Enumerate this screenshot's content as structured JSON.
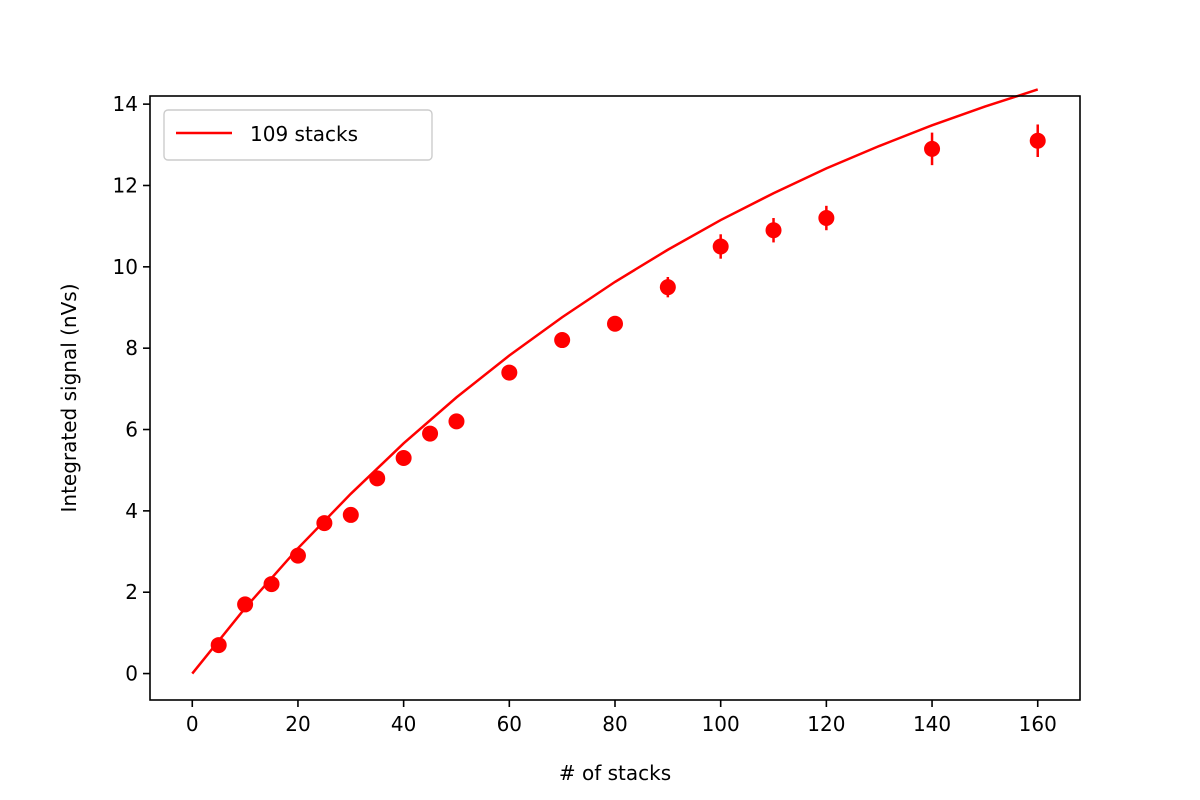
{
  "chart_data": {
    "type": "scatter",
    "title": "",
    "xlabel": "# of stacks",
    "ylabel": "Integrated signal (nVs)",
    "xlim": [
      -8,
      168
    ],
    "ylim": [
      -0.65,
      14.2
    ],
    "xticks": [
      0,
      20,
      40,
      60,
      80,
      100,
      120,
      140,
      160
    ],
    "yticks": [
      0,
      2,
      4,
      6,
      8,
      10,
      12,
      14
    ],
    "grid": false,
    "legend_position": "top-left",
    "color": "#ff0000",
    "series": [
      {
        "kind": "points_with_error_bars",
        "x": [
          5,
          10,
          15,
          20,
          25,
          30,
          35,
          40,
          45,
          50,
          60,
          70,
          80,
          90,
          100,
          110,
          120,
          140,
          160
        ],
        "y": [
          0.7,
          1.7,
          2.2,
          2.9,
          3.7,
          3.9,
          4.8,
          5.3,
          5.9,
          6.2,
          7.4,
          8.2,
          8.6,
          9.5,
          10.5,
          10.9,
          11.2,
          12.9,
          13.1
        ],
        "yerr": [
          0.05,
          0.05,
          0.05,
          0.05,
          0.08,
          0.08,
          0.08,
          0.1,
          0.1,
          0.1,
          0.12,
          0.15,
          0.15,
          0.25,
          0.3,
          0.3,
          0.3,
          0.4,
          0.4
        ]
      },
      {
        "kind": "fit_line",
        "name": "109 stacks",
        "x": [
          0,
          10,
          20,
          30,
          40,
          50,
          60,
          70,
          80,
          90,
          100,
          110,
          120,
          130,
          140,
          150,
          160
        ],
        "y": [
          0.0,
          1.61,
          3.08,
          4.42,
          5.66,
          6.79,
          7.82,
          8.76,
          9.63,
          10.42,
          11.15,
          11.81,
          12.42,
          12.97,
          13.48,
          13.94,
          14.36
        ]
      }
    ]
  }
}
